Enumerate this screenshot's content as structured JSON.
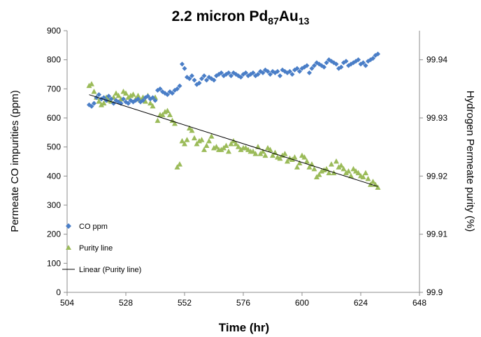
{
  "chart_data": {
    "type": "scatter",
    "title": {
      "main": "2.2 micron Pd",
      "sub1": "87",
      "mid": "Au",
      "sub2": "13"
    },
    "xlabel": "Time (hr)",
    "ylabel": "Permeate CO impurities (ppm)",
    "y2label": "Hydrogen Permeate purity (%)",
    "xlim": [
      504,
      648
    ],
    "ylim": [
      0,
      900
    ],
    "y2lim": [
      99.9,
      99.945
    ],
    "x_ticks": [
      "504",
      "528",
      "552",
      "576",
      "600",
      "624",
      "648"
    ],
    "y_ticks": [
      "0",
      "100",
      "200",
      "300",
      "400",
      "500",
      "600",
      "700",
      "800",
      "900"
    ],
    "y2_ticks": [
      "99.9",
      "99.91",
      "99.92",
      "99.93",
      "99.94"
    ],
    "grid": false,
    "legend_position": "bottom-left",
    "colors": {
      "co": "#4a7ec7",
      "purity": "#9bbb59",
      "linear": "#000000"
    },
    "series": [
      {
        "name": "CO ppm",
        "marker": "diamond",
        "x": [
          513.0,
          514.0,
          515.0,
          516.0,
          517.0,
          518.0,
          519.0,
          520.0,
          521.0,
          522.0,
          523.0,
          524.0,
          525.0,
          526.0,
          527.0,
          528.0,
          529.0,
          530.0,
          531.0,
          532.0,
          533.0,
          534.0,
          535.0,
          536.0,
          537.0,
          538.0,
          539.0,
          540.0,
          541.0,
          542.0,
          543.0,
          544.0,
          545.0,
          546.0,
          547.0,
          548.0,
          549.0,
          550.0,
          551.0,
          552.0,
          553.0,
          554.0,
          555.0,
          556.0,
          557.0,
          558.0,
          559.0,
          560.0,
          561.0,
          562.0,
          563.0,
          564.0,
          565.0,
          566.0,
          567.0,
          568.0,
          569.0,
          570.0,
          571.0,
          572.0,
          573.0,
          574.0,
          575.0,
          576.0,
          577.0,
          578.0,
          579.0,
          580.0,
          581.0,
          582.0,
          583.0,
          584.0,
          585.0,
          586.0,
          587.0,
          588.0,
          589.0,
          590.0,
          591.0,
          592.0,
          593.0,
          594.0,
          595.0,
          596.0,
          597.0,
          598.0,
          599.0,
          600.0,
          601.0,
          602.0,
          603.0,
          604.0,
          605.0,
          606.0,
          607.0,
          608.0,
          609.0,
          610.0,
          611.0,
          612.0,
          613.0,
          614.0,
          615.0,
          616.0,
          617.0,
          618.0,
          619.0,
          620.0,
          621.0,
          622.0,
          623.0,
          624.0,
          625.0,
          626.0,
          627.0,
          628.0,
          629.0,
          630.0,
          631.0
        ],
        "values": [
          645,
          640,
          650,
          670,
          680,
          665,
          670,
          660,
          675,
          665,
          650,
          660,
          655,
          650,
          665,
          655,
          650,
          660,
          655,
          660,
          665,
          655,
          660,
          670,
          675,
          665,
          670,
          660,
          695,
          700,
          690,
          685,
          680,
          690,
          685,
          695,
          700,
          710,
          785,
          770,
          740,
          735,
          745,
          730,
          715,
          720,
          735,
          745,
          730,
          740,
          735,
          730,
          745,
          750,
          755,
          745,
          750,
          755,
          745,
          755,
          750,
          745,
          740,
          750,
          755,
          745,
          750,
          755,
          745,
          750,
          760,
          755,
          765,
          760,
          750,
          760,
          755,
          760,
          745,
          765,
          760,
          755,
          760,
          750,
          765,
          770,
          760,
          770,
          775,
          780,
          755,
          770,
          780,
          790,
          785,
          780,
          775,
          790,
          800,
          795,
          790,
          785,
          770,
          775,
          790,
          795,
          780,
          785,
          790,
          795,
          800,
          785,
          790,
          780,
          795,
          800,
          805,
          815,
          820
        ]
      },
      {
        "name": "Purity line",
        "marker": "triangle",
        "x": [
          513.0,
          514.0,
          515.0,
          516.0,
          517.0,
          518.0,
          519.0,
          520.0,
          521.0,
          522.0,
          523.0,
          524.0,
          525.0,
          526.0,
          527.0,
          528.0,
          529.0,
          530.0,
          531.0,
          532.0,
          533.0,
          534.0,
          535.0,
          536.0,
          537.0,
          538.0,
          539.0,
          540.0,
          541.0,
          542.0,
          543.0,
          544.0,
          545.0,
          546.0,
          547.0,
          548.0,
          549.0,
          550.0,
          551.0,
          552.0,
          553.0,
          554.0,
          555.0,
          556.0,
          557.0,
          558.0,
          559.0,
          560.0,
          561.0,
          562.0,
          563.0,
          564.0,
          565.0,
          566.0,
          567.0,
          568.0,
          569.0,
          570.0,
          571.0,
          572.0,
          573.0,
          574.0,
          575.0,
          576.0,
          577.0,
          578.0,
          579.0,
          580.0,
          581.0,
          582.0,
          583.0,
          584.0,
          585.0,
          586.0,
          587.0,
          588.0,
          589.0,
          590.0,
          591.0,
          592.0,
          593.0,
          594.0,
          595.0,
          596.0,
          597.0,
          598.0,
          599.0,
          600.0,
          601.0,
          602.0,
          603.0,
          604.0,
          605.0,
          606.0,
          607.0,
          608.0,
          609.0,
          610.0,
          611.0,
          612.0,
          613.0,
          614.0,
          615.0,
          616.0,
          617.0,
          618.0,
          619.0,
          620.0,
          621.0,
          622.0,
          623.0,
          624.0,
          625.0,
          626.0,
          627.0,
          628.0,
          629.0,
          630.0,
          631.0
        ],
        "values": [
          99.9355,
          99.9358,
          99.9345,
          99.9335,
          99.9328,
          99.9322,
          99.9325,
          99.9335,
          99.933,
          99.9328,
          99.9335,
          99.9342,
          99.9338,
          99.9332,
          99.9345,
          99.9342,
          99.9335,
          99.9338,
          99.934,
          99.9332,
          99.9338,
          99.933,
          99.9335,
          99.9328,
          99.9338,
          99.9325,
          99.932,
          99.9335,
          99.9295,
          99.9305,
          99.9305,
          99.931,
          99.9312,
          99.9305,
          99.9295,
          99.929,
          99.9215,
          99.922,
          99.926,
          99.9255,
          99.9262,
          99.9282,
          99.9278,
          99.9265,
          99.9255,
          99.926,
          99.9262,
          99.9245,
          99.9252,
          99.926,
          99.9268,
          99.9248,
          99.925,
          99.9245,
          99.9245,
          99.9248,
          99.9252,
          99.9242,
          99.9255,
          99.926,
          99.9255,
          99.925,
          99.9245,
          99.9248,
          99.9248,
          99.9245,
          99.9242,
          99.9242,
          99.9238,
          99.925,
          99.9238,
          99.9242,
          99.9235,
          99.9248,
          99.9245,
          99.9235,
          99.924,
          99.9232,
          99.923,
          99.9235,
          99.9238,
          99.9225,
          99.923,
          99.9228,
          99.9232,
          99.9215,
          99.9222,
          99.9235,
          99.9232,
          99.9225,
          99.9215,
          99.922,
          99.9212,
          99.9198,
          99.9202,
          99.9208,
          99.921,
          99.9212,
          99.9205,
          99.922,
          99.9205,
          99.9225,
          99.9215,
          99.9218,
          99.9212,
          99.9205,
          99.9208,
          99.92,
          99.9212,
          99.9208,
          99.9205,
          99.92,
          99.9198,
          99.9205,
          99.9195,
          99.9185,
          99.919,
          99.9185,
          99.918
        ]
      }
    ],
    "trendline": {
      "name": "Linear (Purity line)",
      "series": "Purity line",
      "x": [
        513,
        631
      ],
      "values": [
        99.934,
        99.9182
      ]
    }
  }
}
